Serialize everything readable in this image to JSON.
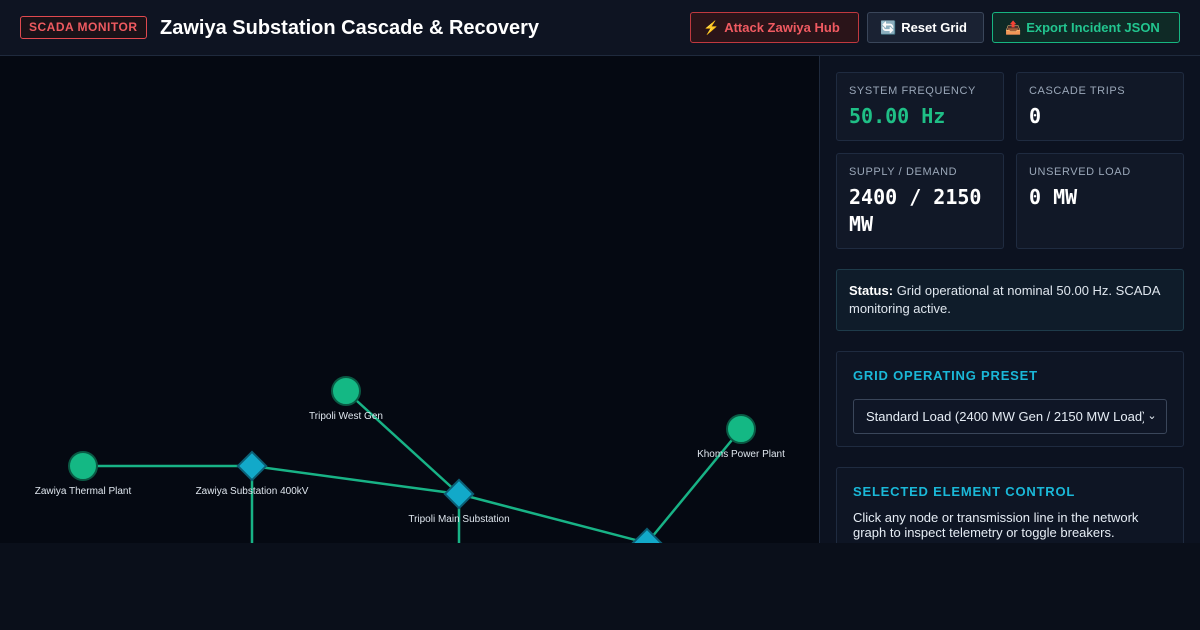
{
  "header": {
    "badge": "SCADA MONITOR",
    "title": "Zawiya Substation Cascade & Recovery",
    "buttons": {
      "attack": {
        "icon": "⚡",
        "label": "Attack Zawiya Hub"
      },
      "reset": {
        "icon": "🔄",
        "label": "Reset Grid"
      },
      "export": {
        "icon": "📤",
        "label": "Export Incident JSON"
      }
    }
  },
  "graph": {
    "nodes": {
      "tripoli_west_gen": {
        "label": "Tripoli West Gen",
        "type": "generator"
      },
      "zawiya_thermal": {
        "label": "Zawiya Thermal Plant",
        "type": "generator"
      },
      "zawiya_sub": {
        "label": "Zawiya Substation 400kV",
        "type": "substation"
      },
      "tripoli_main": {
        "label": "Tripoli Main Substation",
        "type": "substation"
      },
      "khoms": {
        "label": "Khoms Power Plant",
        "type": "generator"
      },
      "east_sub": {
        "label": "",
        "type": "substation"
      }
    },
    "colors": {
      "generator": "#14b884",
      "substation": "#12a9c9",
      "line": "#18b386"
    }
  },
  "metrics": {
    "frequency": {
      "label": "SYSTEM FREQUENCY",
      "value": "50.00 Hz"
    },
    "cascade": {
      "label": "CASCADE TRIPS",
      "value": "0"
    },
    "supply": {
      "label": "SUPPLY / DEMAND",
      "value": "2400 / 2150 MW"
    },
    "unserved": {
      "label": "UNSERVED LOAD",
      "value": "0 MW"
    }
  },
  "status": {
    "label": "Status:",
    "text": "Grid operational at nominal 50.00 Hz. SCADA monitoring active."
  },
  "preset": {
    "title": "GRID OPERATING PRESET",
    "selected": "Standard Load (2400 MW Gen / 2150 MW Load)",
    "chevron": "⌄"
  },
  "control": {
    "title": "SELECTED ELEMENT CONTROL",
    "text": "Click any node or transmission line in the network graph to inspect telemetry or toggle breakers."
  }
}
